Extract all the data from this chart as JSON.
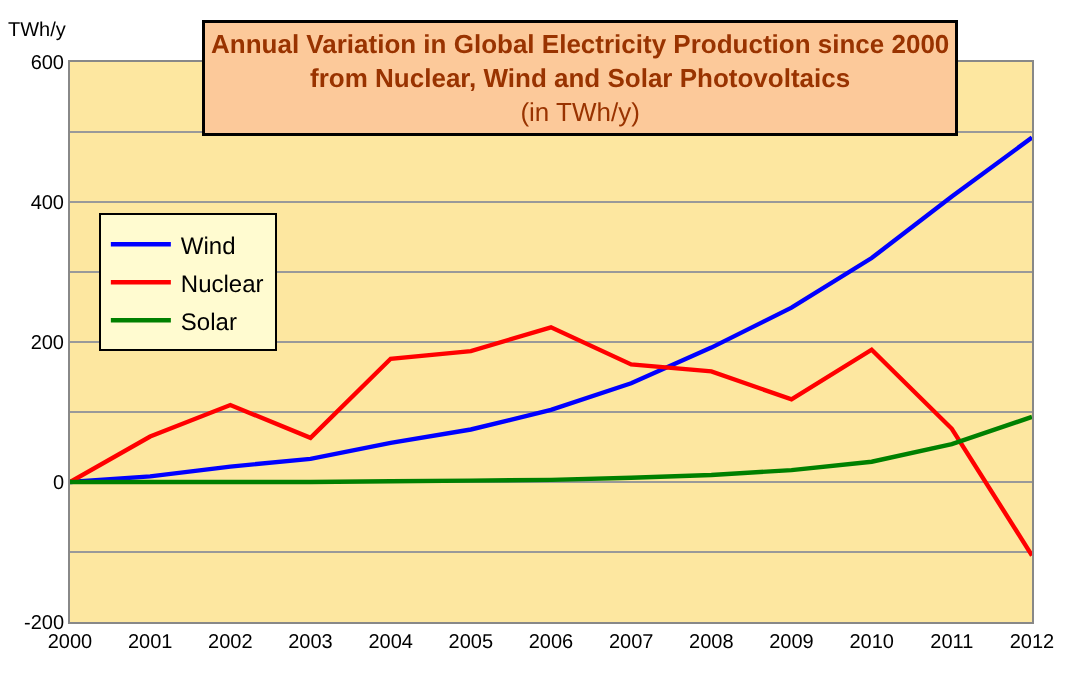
{
  "chart_data": {
    "type": "line",
    "title": "Annual Variation in Global Electricity Production since 2000\nfrom Nuclear, Wind and Solar Photovoltaics",
    "subtitle": "(in TWh/y)",
    "ylabel": "TWh/y",
    "categories": [
      "2000",
      "2001",
      "2002",
      "2003",
      "2004",
      "2005",
      "2006",
      "2007",
      "2008",
      "2009",
      "2010",
      "2011",
      "2012"
    ],
    "series": [
      {
        "name": "Wind",
        "color": "#0000ff",
        "values": [
          0,
          8,
          22,
          33,
          56,
          75,
          103,
          141,
          192,
          249,
          320,
          408,
          492
        ]
      },
      {
        "name": "Nuclear",
        "color": "#ff0000",
        "values": [
          0,
          65,
          110,
          63,
          176,
          187,
          221,
          168,
          158,
          118,
          189,
          76,
          -105
        ]
      },
      {
        "name": "Solar",
        "color": "#008000",
        "values": [
          0,
          0,
          0,
          0,
          1,
          2,
          3,
          6,
          10,
          17,
          29,
          54,
          93
        ]
      }
    ],
    "ylim": [
      -200,
      600
    ],
    "yticks": [
      -200,
      {
        "value": -100,
        "label": null
      },
      0,
      {
        "value": 100,
        "label": null
      },
      200,
      {
        "value": 300,
        "label": null
      },
      400,
      {
        "value": 500,
        "label": null
      },
      600
    ],
    "grid": "y",
    "legend": "top left",
    "marker": "none",
    "line_style": "solid"
  }
}
